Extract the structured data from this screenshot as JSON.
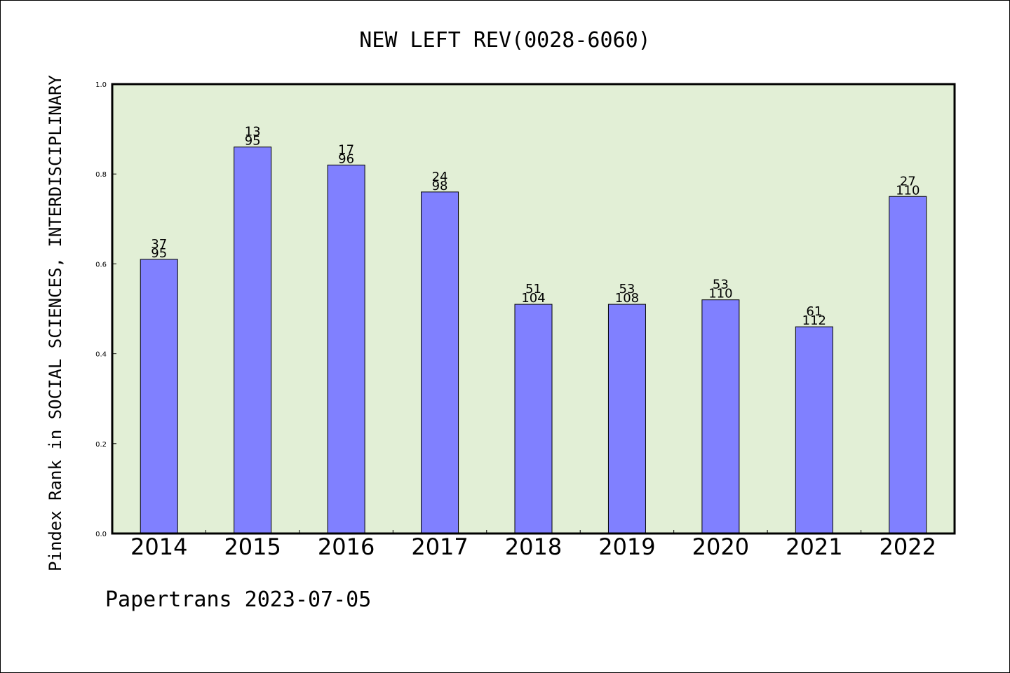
{
  "chart_data": {
    "type": "bar",
    "title": "NEW LEFT REV(0028-6060)",
    "ylabel": "Pindex Rank in SOCIAL SCIENCES, INTERDISCIPLINARY",
    "xlabel": "",
    "credit": "Papertrans 2023-07-05",
    "categories": [
      "2014",
      "2015",
      "2016",
      "2017",
      "2018",
      "2019",
      "2020",
      "2021",
      "2022"
    ],
    "values": [
      0.61,
      0.86,
      0.82,
      0.76,
      0.51,
      0.51,
      0.52,
      0.46,
      0.75
    ],
    "rank_labels": [
      "37",
      "13",
      "17",
      "24",
      "51",
      "53",
      "53",
      "61",
      "27"
    ],
    "total_labels": [
      "95",
      "95",
      "96",
      "98",
      "104",
      "108",
      "110",
      "112",
      "110"
    ],
    "ylim": [
      0,
      1.0
    ],
    "yticks": [
      "0.0",
      "0.2",
      "0.4",
      "0.6",
      "0.8",
      "1.0"
    ],
    "grid": false,
    "legend": "none",
    "colors": {
      "plot_background": "#e2efd6",
      "bar_fill": "#8080ff",
      "bar_stroke": "#000000",
      "axis": "#000000"
    }
  }
}
